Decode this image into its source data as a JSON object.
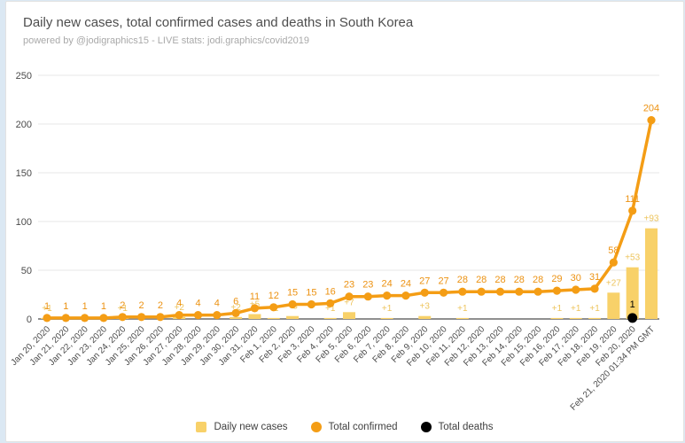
{
  "header": {
    "title": "Daily new cases, total confirmed cases and deaths in South Korea",
    "subtitle": "powered by @jodigraphics15 - LIVE stats: jodi.graphics/covid2019"
  },
  "chart_data": {
    "type": "bar+line",
    "title": "Daily new cases, total confirmed cases and deaths in South Korea",
    "subtitle": "powered by @jodigraphics15 - LIVE stats: jodi.graphics/covid2019",
    "xlabel": "",
    "ylabel": "",
    "ylim": [
      0,
      250
    ],
    "yticks": [
      0,
      50,
      100,
      150,
      200,
      250
    ],
    "grid": true,
    "legend_position": "bottom",
    "categories": [
      "Jan 20, 2020",
      "Jan 21, 2020",
      "Jan 22, 2020",
      "Jan 23, 2020",
      "Jan 24, 2020",
      "Jan 25, 2020",
      "Jan 26, 2020",
      "Jan 27, 2020",
      "Jan 28, 2020",
      "Jan 29, 2020",
      "Jan 30, 2020",
      "Jan 31, 2020",
      "Feb 1, 2020",
      "Feb 2, 2020",
      "Feb 3, 2020",
      "Feb 4, 2020",
      "Feb 5, 2020",
      "Feb 6, 2020",
      "Feb 7, 2020",
      "Feb 8, 2020",
      "Feb 9, 2020",
      "Feb 10, 2020",
      "Feb 11, 2020",
      "Feb 12, 2020",
      "Feb 13, 2020",
      "Feb 14, 2020",
      "Feb 15, 2020",
      "Feb 16, 2020",
      "Feb 17, 2020",
      "Feb 18, 2020",
      "Feb 19, 2020",
      "Feb 20, 2020",
      "Feb 21, 2020 01:34 PM GMT"
    ],
    "series": [
      {
        "name": "Daily new cases",
        "type": "bar",
        "color": "#F8D169",
        "label_prefix": "+",
        "values": [
          1,
          0,
          0,
          0,
          1,
          0,
          0,
          2,
          0,
          0,
          2,
          5,
          1,
          3,
          0,
          1,
          7,
          0,
          1,
          0,
          3,
          0,
          1,
          0,
          0,
          0,
          0,
          1,
          1,
          1,
          27,
          53,
          93
        ]
      },
      {
        "name": "Total confirmed",
        "type": "line",
        "color": "#F49D15",
        "values": [
          1,
          1,
          1,
          1,
          2,
          2,
          2,
          4,
          4,
          4,
          6,
          11,
          12,
          15,
          15,
          16,
          23,
          23,
          24,
          24,
          27,
          27,
          28,
          28,
          28,
          28,
          28,
          29,
          30,
          31,
          58,
          111,
          204
        ]
      },
      {
        "name": "Total deaths",
        "type": "point",
        "color": "#000000",
        "values": [
          null,
          null,
          null,
          null,
          null,
          null,
          null,
          null,
          null,
          null,
          null,
          null,
          null,
          null,
          null,
          null,
          null,
          null,
          null,
          null,
          null,
          null,
          null,
          null,
          null,
          null,
          null,
          null,
          null,
          null,
          null,
          1,
          null
        ]
      }
    ]
  },
  "legend": {
    "items": [
      {
        "label": "Daily new cases",
        "shape": "square",
        "color": "#F8D169"
      },
      {
        "label": "Total confirmed",
        "shape": "circle",
        "color": "#F49D15"
      },
      {
        "label": "Total deaths",
        "shape": "circle",
        "color": "#000000"
      }
    ]
  },
  "colors": {
    "accent_line": "#F49D15",
    "accent_bar": "#F8D169",
    "total_label": "#EC9212",
    "daily_label": "#EDC45C",
    "grid": "#E7E7E7",
    "axis": "#8F8F8F",
    "page_background": "#DBE8F3"
  }
}
